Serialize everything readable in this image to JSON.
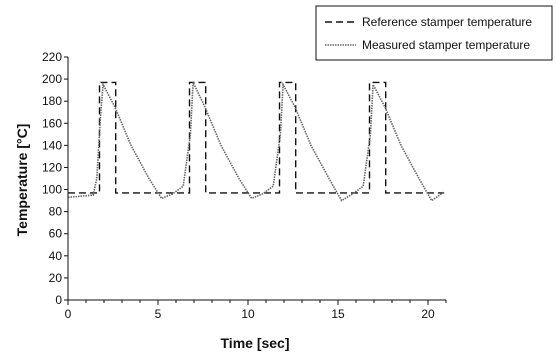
{
  "chart_data": {
    "type": "line",
    "xlabel": "Time [sec]",
    "ylabel": "Temperature [°C]",
    "xlim": [
      0,
      21
    ],
    "ylim": [
      0,
      220
    ],
    "xticks": [
      0,
      5,
      10,
      15,
      20
    ],
    "yticks": [
      0,
      20,
      40,
      60,
      80,
      100,
      120,
      140,
      160,
      180,
      200,
      220
    ],
    "grid": false,
    "legend_position": "top-right",
    "series": [
      {
        "name": "Reference stamper temperature",
        "style": "dashed",
        "color": "#111111",
        "x": [
          0,
          1.75,
          1.75,
          2.65,
          2.65,
          6.75,
          6.75,
          7.65,
          7.65,
          11.75,
          11.75,
          12.65,
          12.65,
          16.75,
          16.75,
          17.65,
          17.65,
          20.9
        ],
        "y": [
          97,
          97,
          197,
          197,
          97,
          97,
          197,
          197,
          97,
          97,
          197,
          197,
          97,
          97,
          197,
          197,
          97,
          97
        ]
      },
      {
        "name": "Measured stamper temperature",
        "style": "dotted",
        "color": "#666666",
        "x": [
          0,
          1.4,
          1.6,
          1.8,
          1.95,
          2.6,
          3.5,
          4.5,
          5.2,
          5.8,
          6.4,
          6.8,
          6.95,
          7.6,
          8.5,
          9.5,
          10.2,
          10.8,
          11.4,
          11.8,
          11.95,
          12.6,
          13.5,
          14.5,
          15.2,
          15.8,
          16.4,
          16.8,
          16.95,
          17.6,
          18.5,
          19.5,
          20.2,
          20.9
        ],
        "y": [
          93,
          95,
          110,
          165,
          195,
          175,
          140,
          110,
          92,
          96,
          103,
          150,
          197,
          175,
          140,
          110,
          92,
          96,
          103,
          150,
          195,
          175,
          140,
          110,
          90,
          96,
          103,
          150,
          195,
          175,
          140,
          110,
          90,
          98
        ]
      }
    ]
  }
}
